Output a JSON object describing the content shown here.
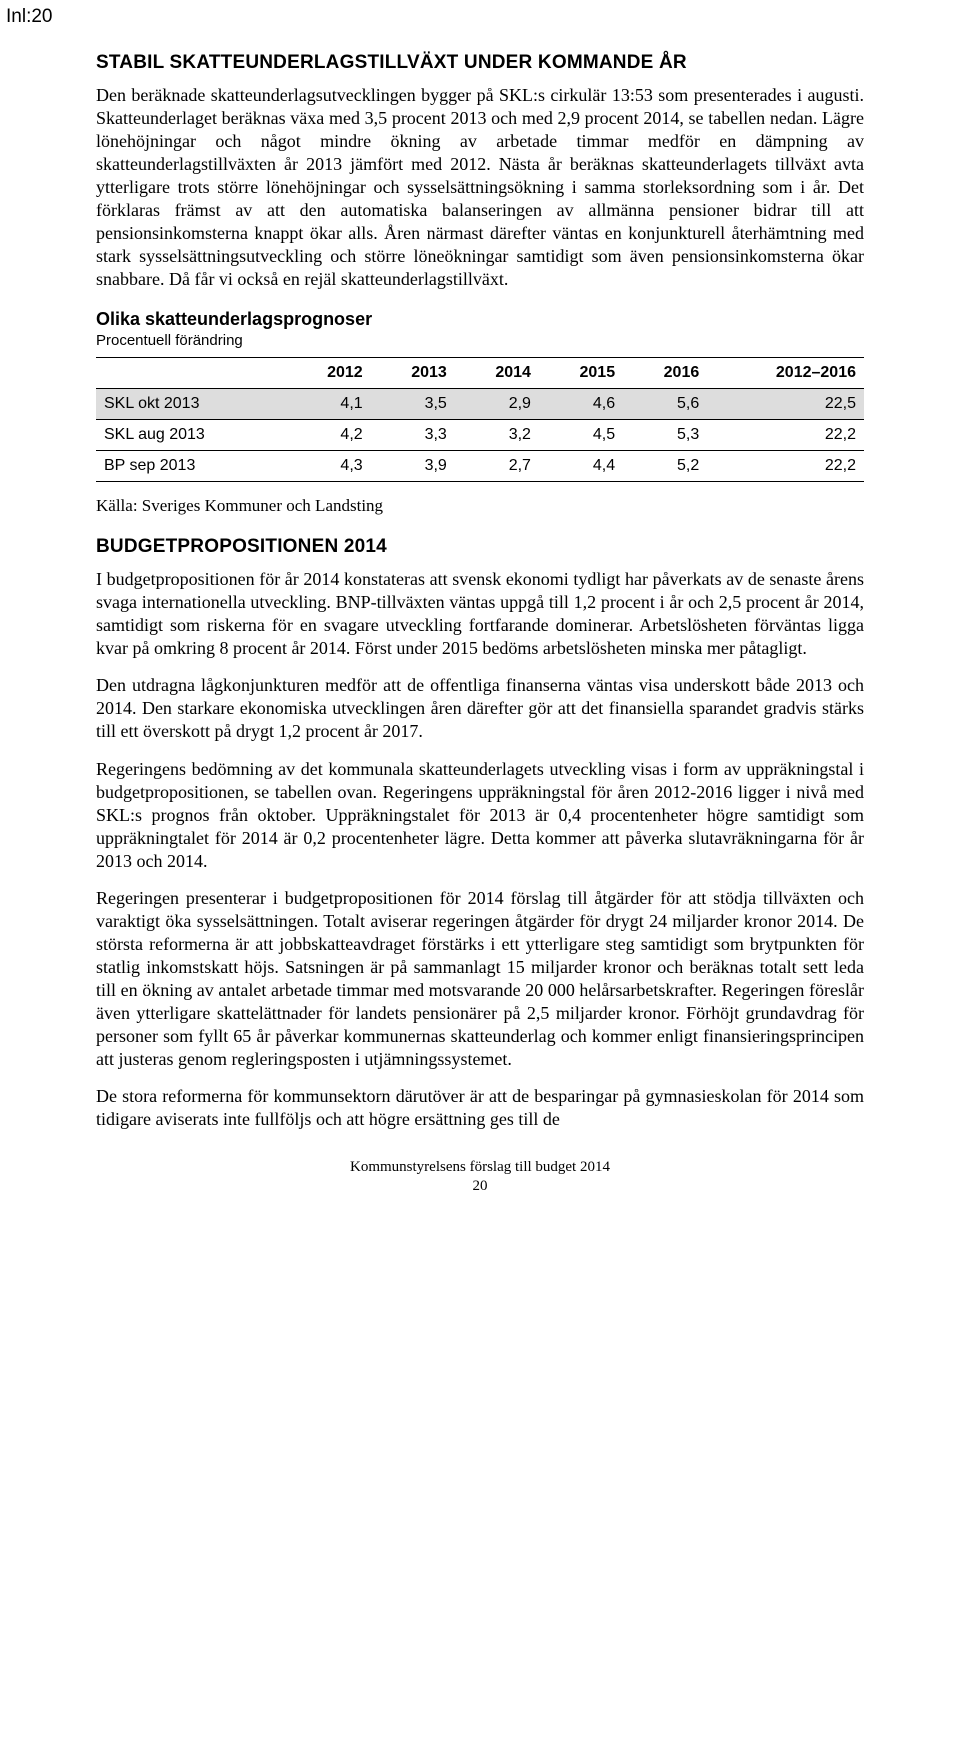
{
  "header_tag": "Inl:20",
  "section1": {
    "heading": "STABIL SKATTEUNDERLAGSTILLVÄXT UNDER KOMMANDE ÅR",
    "p1": "Den beräknade skatteunderlagsutvecklingen bygger på SKL:s cirkulär 13:53 som presenterades i augusti. Skatteunderlaget beräknas växa med 3,5 procent 2013 och med 2,9 procent 2014, se tabellen nedan. Lägre lönehöjningar och något mindre ökning av arbetade timmar medför en dämpning av skatteunderlagstillväxten år 2013 jämfört med 2012. Nästa år beräknas skatteunderlagets tillväxt avta ytterligare trots större lönehöjningar och sysselsättningsökning i samma storleksordning som i år. Det förklaras främst av att den automatiska balanseringen av allmänna pensioner bidrar till att pensionsinkomsterna knappt ökar alls. Åren närmast därefter väntas en konjunkturell återhämtning med stark sysselsättningsutveckling och större löneökningar samtidigt som även pensionsinkomsterna ökar snabbare. Då får vi också en rejäl skatteunderlagstillväxt."
  },
  "table": {
    "title": "Olika skatteunderlagsprognoser",
    "caption": "Procentuell förändring",
    "columns": [
      "",
      "2012",
      "2013",
      "2014",
      "2015",
      "2016",
      "2012–2016"
    ],
    "rows": [
      {
        "label": "SKL okt 2013",
        "cells": [
          "4,1",
          "3,5",
          "2,9",
          "4,6",
          "5,6",
          "22,5"
        ],
        "highlight": true
      },
      {
        "label": "SKL aug 2013",
        "cells": [
          "4,2",
          "3,3",
          "3,2",
          "4,5",
          "5,3",
          "22,2"
        ],
        "highlight": false
      },
      {
        "label": "BP sep 2013",
        "cells": [
          "4,3",
          "3,9",
          "2,7",
          "4,4",
          "5,2",
          "22,2"
        ],
        "highlight": false
      }
    ],
    "source": "Källa: Sveriges Kommuner och Landsting"
  },
  "section2": {
    "heading": "BUDGETPROPOSITIONEN 2014",
    "p1": "I budgetpropositionen för år 2014 konstateras att svensk ekonomi tydligt har påverkats av de senaste årens svaga internationella utveckling. BNP-tillväxten väntas uppgå till 1,2 procent i år och 2,5 procent år 2014, samtidigt som riskerna för en svagare utveckling fortfarande dominerar. Arbetslösheten förväntas ligga kvar på omkring 8 procent år 2014. Först under 2015 bedöms arbetslösheten minska mer påtagligt.",
    "p2": "Den utdragna lågkonjunkturen medför att de offentliga finanserna väntas visa underskott både 2013 och 2014. Den starkare ekonomiska utvecklingen åren därefter gör att det finansiella sparandet gradvis stärks till ett överskott på drygt 1,2 procent år 2017.",
    "p3": "Regeringens bedömning av det kommunala skatteunderlagets utveckling visas i form av uppräkningstal i budgetpropositionen, se tabellen ovan. Regeringens uppräkningstal för åren 2012-2016 ligger i nivå med SKL:s prognos från oktober. Uppräkningstalet för 2013 är 0,4 procentenheter högre samtidigt som uppräkningtalet för 2014 är 0,2 procentenheter lägre. Detta kommer att påverka slutavräkningarna för år 2013 och 2014.",
    "p4": "Regeringen presenterar i budgetpropositionen för 2014 förslag till åtgärder för att stödja tillväxten och varaktigt öka sysselsättningen. Totalt aviserar regeringen åtgärder för drygt 24 miljarder kronor 2014. De största reformerna är att jobbskatteavdraget förstärks i ett ytterligare steg samtidigt som brytpunkten för statlig inkomstskatt höjs. Satsningen är på sammanlagt 15 miljarder kronor och beräknas totalt sett leda till en ökning av antalet arbetade timmar med motsvarande 20 000 helårsarbetskrafter. Regeringen föreslår även ytterligare skattelättnader för landets pensionärer på 2,5 miljarder kronor. Förhöjt grundavdrag för personer som fyllt 65 år påverkar kommunernas skatteunderlag och kommer enligt finansieringsprincipen att justeras genom regleringsposten i utjämningssystemet.",
    "p5": "De stora reformerna för kommunsektorn därutöver är att de besparingar på gymnasieskolan för 2014 som tidigare aviserats inte fullföljs och att högre ersättning ges till de"
  },
  "footer": {
    "line": "Kommunstyrelsens förslag till budget 2014",
    "page_number": "20"
  }
}
